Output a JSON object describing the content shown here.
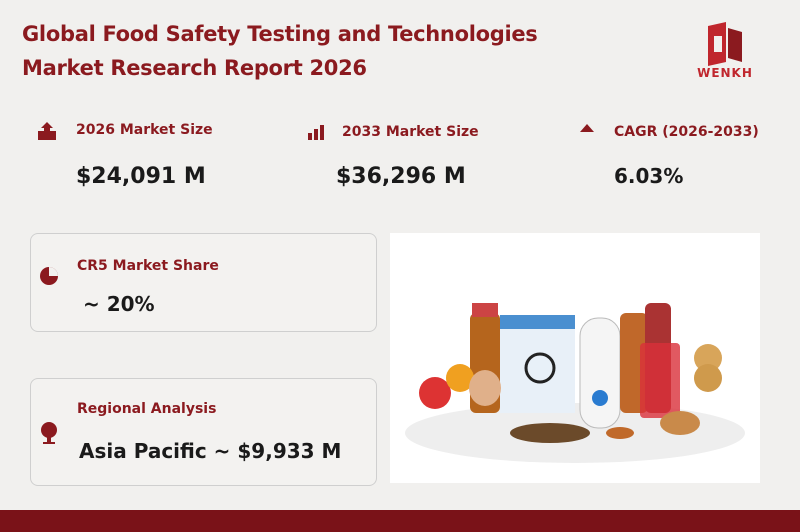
{
  "header": {
    "title_lines": [
      "Global Food Safety Testing and Technologies",
      "Market Research Report 2026"
    ],
    "logo": "WENKH"
  },
  "stats": [
    {
      "label": "2026 Market Size",
      "value": "$24,091 M"
    },
    {
      "label": "2033 Market Size",
      "value": "$36,296  M"
    },
    {
      "label": "CAGR (2026-2033)",
      "value": "6.03%"
    }
  ],
  "cards": [
    {
      "label": "CR5 Market Share",
      "value": "~ 20%"
    },
    {
      "label": "Regional Analysis",
      "value": "Asia Pacific ~ $9,933 M"
    }
  ]
}
